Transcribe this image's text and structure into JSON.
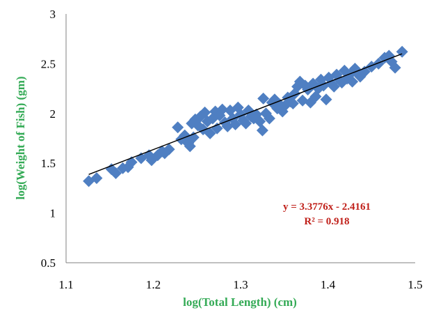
{
  "chart_data": {
    "type": "scatter",
    "xlabel": "log(Total Length) (cm)",
    "ylabel": "log(Weight of Fish) (gm)",
    "xlim": [
      1.1,
      1.5
    ],
    "ylim": [
      0.5,
      3
    ],
    "x_ticks": [
      "1.1",
      "1.2",
      "1.3",
      "1.4",
      "1.5"
    ],
    "y_ticks": [
      "0.5",
      "1",
      "1.5",
      "2",
      "2.5",
      "3"
    ],
    "grid": false,
    "legend": "none",
    "axis_label_color": "#33aa55",
    "marker_color": "#4f7fc2",
    "trend_color": "#000000",
    "annotation_color": "#c0201a",
    "trendline": {
      "type": "linear",
      "slope": 3.3776,
      "intercept": -2.4161,
      "x_range": [
        1.126,
        1.485
      ],
      "equation": "y = 3.3776x - 2.4161",
      "r_squared": "R² = 0.918"
    },
    "series": [
      {
        "points": [
          [
            1.126,
            1.32
          ],
          [
            1.135,
            1.35
          ],
          [
            1.152,
            1.44
          ],
          [
            1.157,
            1.4
          ],
          [
            1.165,
            1.45
          ],
          [
            1.171,
            1.46
          ],
          [
            1.175,
            1.51
          ],
          [
            1.186,
            1.55
          ],
          [
            1.195,
            1.58
          ],
          [
            1.198,
            1.53
          ],
          [
            1.205,
            1.58
          ],
          [
            1.21,
            1.62
          ],
          [
            1.213,
            1.6
          ],
          [
            1.218,
            1.64
          ],
          [
            1.228,
            1.86
          ],
          [
            1.232,
            1.74
          ],
          [
            1.236,
            1.78
          ],
          [
            1.24,
            1.7
          ],
          [
            1.242,
            1.67
          ],
          [
            1.244,
            1.9
          ],
          [
            1.246,
            1.76
          ],
          [
            1.248,
            1.94
          ],
          [
            1.251,
            1.88
          ],
          [
            1.254,
            1.97
          ],
          [
            1.257,
            1.84
          ],
          [
            1.259,
            2.01
          ],
          [
            1.262,
            1.92
          ],
          [
            1.265,
            1.8
          ],
          [
            1.268,
            1.95
          ],
          [
            1.271,
            2.02
          ],
          [
            1.273,
            1.85
          ],
          [
            1.276,
            1.98
          ],
          [
            1.279,
            2.04
          ],
          [
            1.282,
            1.91
          ],
          [
            1.285,
            1.87
          ],
          [
            1.288,
            2.03
          ],
          [
            1.291,
            1.95
          ],
          [
            1.294,
            1.89
          ],
          [
            1.297,
            2.06
          ],
          [
            1.3,
            1.99
          ],
          [
            1.303,
            1.93
          ],
          [
            1.306,
            1.9
          ],
          [
            1.309,
            2.03
          ],
          [
            1.312,
            1.97
          ],
          [
            1.315,
            1.95
          ],
          [
            1.318,
            1.99
          ],
          [
            1.322,
            1.92
          ],
          [
            1.325,
            1.83
          ],
          [
            1.326,
            2.15
          ],
          [
            1.329,
            2.0
          ],
          [
            1.333,
            1.95
          ],
          [
            1.336,
            2.11
          ],
          [
            1.339,
            2.14
          ],
          [
            1.342,
            2.05
          ],
          [
            1.345,
            2.09
          ],
          [
            1.348,
            2.02
          ],
          [
            1.351,
            2.08
          ],
          [
            1.354,
            2.16
          ],
          [
            1.357,
            2.12
          ],
          [
            1.36,
            2.1
          ],
          [
            1.362,
            2.2
          ],
          [
            1.365,
            2.27
          ],
          [
            1.368,
            2.32
          ],
          [
            1.371,
            2.13
          ],
          [
            1.374,
            2.28
          ],
          [
            1.377,
            2.24
          ],
          [
            1.38,
            2.11
          ],
          [
            1.383,
            2.3
          ],
          [
            1.386,
            2.17
          ],
          [
            1.389,
            2.25
          ],
          [
            1.392,
            2.34
          ],
          [
            1.395,
            2.28
          ],
          [
            1.398,
            2.14
          ],
          [
            1.401,
            2.36
          ],
          [
            1.404,
            2.3
          ],
          [
            1.407,
            2.27
          ],
          [
            1.41,
            2.39
          ],
          [
            1.413,
            2.34
          ],
          [
            1.416,
            2.31
          ],
          [
            1.419,
            2.43
          ],
          [
            1.422,
            2.35
          ],
          [
            1.425,
            2.39
          ],
          [
            1.428,
            2.32
          ],
          [
            1.431,
            2.45
          ],
          [
            1.434,
            2.4
          ],
          [
            1.437,
            2.37
          ],
          [
            1.442,
            2.42
          ],
          [
            1.45,
            2.47
          ],
          [
            1.458,
            2.5
          ],
          [
            1.465,
            2.56
          ],
          [
            1.47,
            2.58
          ],
          [
            1.473,
            2.52
          ],
          [
            1.477,
            2.46
          ],
          [
            1.485,
            2.62
          ]
        ]
      }
    ]
  }
}
